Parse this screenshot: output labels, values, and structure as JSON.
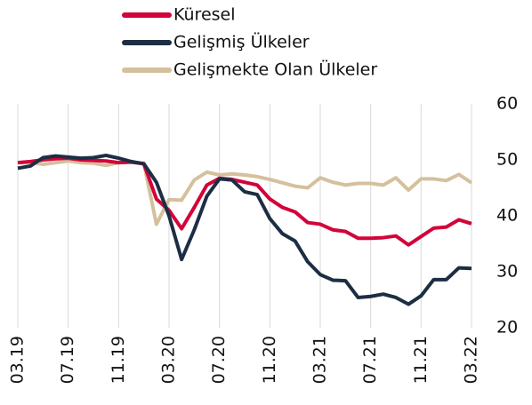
{
  "chart_data": {
    "type": "line",
    "categories": [
      "03.19",
      null,
      null,
      null,
      "07.19",
      null,
      null,
      null,
      "11.19",
      null,
      null,
      null,
      "03.20",
      null,
      null,
      null,
      "07.20",
      null,
      null,
      null,
      "11.20",
      null,
      null,
      null,
      "03.21",
      null,
      null,
      null,
      "07.21",
      null,
      null,
      null,
      "11.21",
      null,
      null,
      null,
      "03.22"
    ],
    "series": [
      {
        "name": "Küresel",
        "color": "#d2043a",
        "values": [
          49.5,
          49.7,
          50,
          50.2,
          50.3,
          50,
          49.9,
          49.8,
          49.5,
          49.6,
          49.3,
          43,
          41,
          37.7,
          41.5,
          45.5,
          46.7,
          46.5,
          46,
          45.5,
          43,
          41.5,
          40.7,
          38.8,
          38.5,
          37.5,
          37.2,
          36,
          36,
          36.1,
          36.4,
          34.8,
          36.3,
          37.8,
          38,
          39.3,
          38.6
        ]
      },
      {
        "name": "Gelişmiş Ülkeler",
        "color": "#1c2e44",
        "values": [
          48.5,
          48.9,
          50.4,
          50.7,
          50.5,
          50.3,
          50.4,
          50.8,
          50.3,
          49.7,
          49.3,
          46,
          40,
          32.2,
          37.5,
          43.5,
          46.6,
          46.4,
          44.3,
          43.8,
          39.5,
          36.8,
          35.5,
          31.8,
          29.5,
          28.5,
          28.4,
          25.4,
          25.6,
          26,
          25.4,
          24.2,
          25.7,
          28.6,
          28.6,
          30.7,
          30.6
        ]
      },
      {
        "name": "Gelişmekte Olan Ülkeler",
        "color": "#d5c09d",
        "values": [
          49.5,
          49.5,
          49.2,
          49.5,
          49.8,
          49.5,
          49.4,
          49,
          49.5,
          49.6,
          49.4,
          38.5,
          42.9,
          42.8,
          46.4,
          47.8,
          47.3,
          47.5,
          47.3,
          47,
          46.5,
          45.9,
          45.3,
          45,
          46.8,
          46,
          45.5,
          45.8,
          45.8,
          45.5,
          46.8,
          44.6,
          46.6,
          46.6,
          46.3,
          47.4,
          45.9
        ]
      }
    ],
    "ylim": [
      20,
      60
    ],
    "yticks": [
      20,
      30,
      40,
      50,
      60
    ],
    "grid": true,
    "legend": "top"
  }
}
